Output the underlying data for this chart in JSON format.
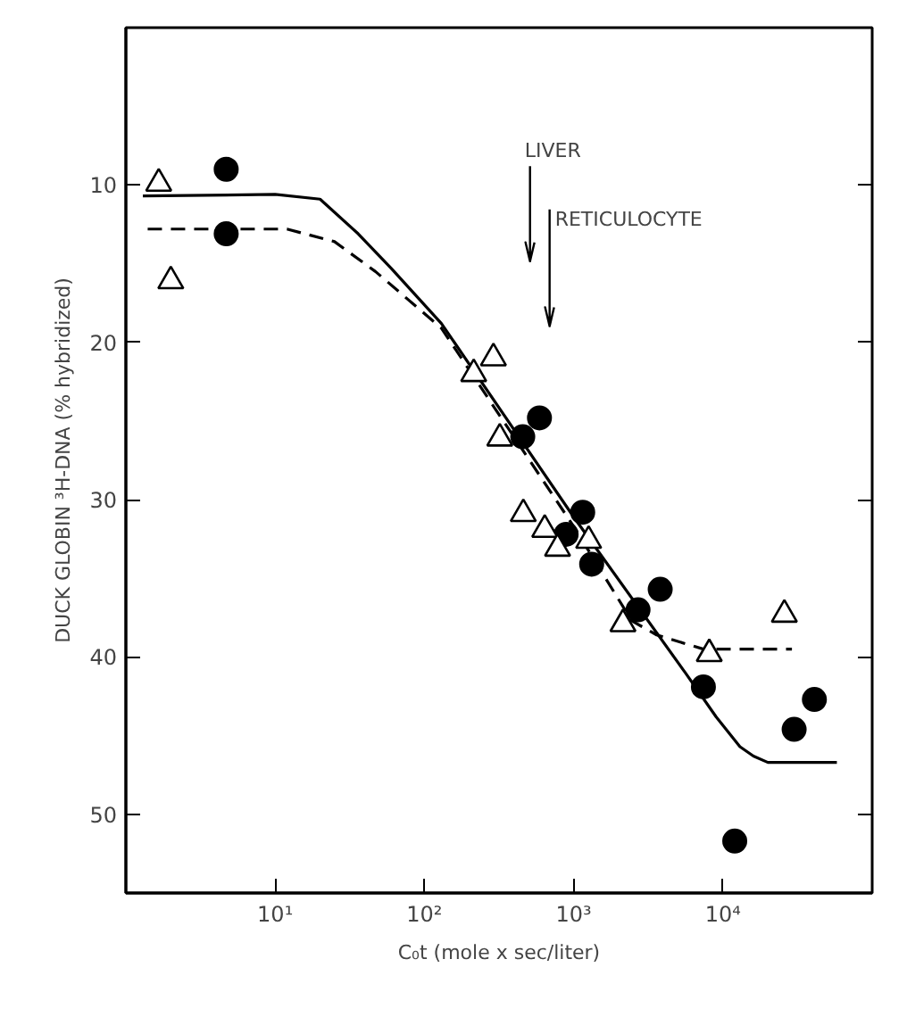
{
  "chart_data": {
    "type": "scatter",
    "xlabel": "C₀t (mole x sec/liter)",
    "ylabel": "DUCK GLOBIN ³H-DNA (% hybridized)",
    "log": "x",
    "xlim": [
      1,
      100000
    ],
    "ylim": [
      55,
      0
    ],
    "xticks": [
      {
        "value": 10,
        "label": "10¹"
      },
      {
        "value": 100,
        "label": "10²"
      },
      {
        "value": 1000,
        "label": "10³"
      },
      {
        "value": 10000,
        "label": "10⁴"
      }
    ],
    "yticks": [
      10,
      20,
      30,
      40,
      50
    ],
    "grid": false,
    "series": [
      {
        "marker": "circle",
        "color": "#000000",
        "x": [
          4.7,
          4.7,
          456,
          590,
          1150,
          890,
          1320,
          2700,
          3800,
          7400,
          12000,
          30000,
          41000
        ],
        "values": [
          9.0,
          13.1,
          26.0,
          24.8,
          30.8,
          32.2,
          34.1,
          37.0,
          35.7,
          41.9,
          51.7,
          44.6,
          42.7
        ]
      },
      {
        "marker": "triangle",
        "color": "#000000",
        "x": [
          1.66,
          2.0,
          214,
          290,
          320,
          460,
          640,
          780,
          1260,
          2140,
          8100,
          25800
        ],
        "values": [
          9.9,
          16.1,
          22.0,
          21.0,
          26.1,
          30.9,
          31.9,
          33.1,
          32.6,
          37.9,
          39.8,
          37.3
        ]
      },
      {
        "type": "line",
        "line_style": "solid",
        "color": "#000000",
        "x": [
          1.3,
          10,
          20,
          36,
          60,
          130,
          1000,
          5600,
          9000,
          13000,
          16000,
          20000,
          58000
        ],
        "values": [
          10.7,
          10.6,
          10.9,
          13.1,
          15.3,
          18.8,
          31.1,
          41.0,
          43.8,
          45.7,
          46.3,
          46.7,
          46.7
        ]
      },
      {
        "type": "line",
        "line_style": "dashed",
        "color": "#000000",
        "x": [
          1.4,
          12,
          25,
          47,
          130,
          1000,
          2450,
          3600,
          7400,
          29000
        ],
        "values": [
          12.8,
          12.8,
          13.6,
          15.5,
          19.1,
          31.7,
          37.7,
          38.6,
          39.5,
          39.5
        ]
      }
    ],
    "ref_lines": [
      {
        "axis": "x",
        "value": 510,
        "label": "LIVER"
      },
      {
        "axis": "x",
        "value": 690,
        "label": "RETICULOCYTE"
      }
    ]
  }
}
